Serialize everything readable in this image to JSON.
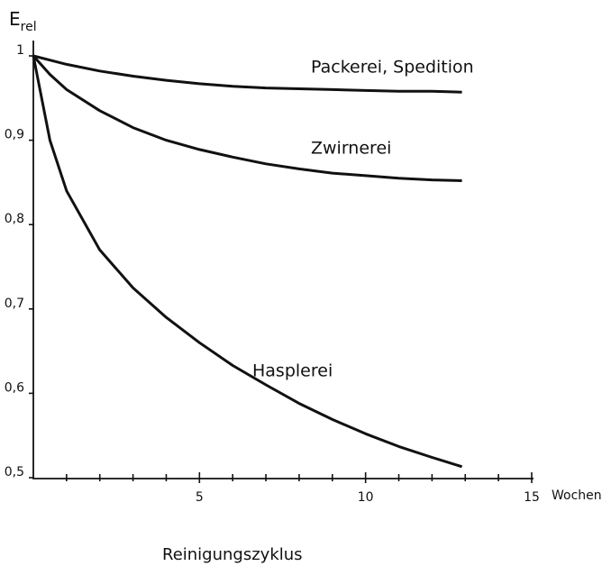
{
  "chart_data": {
    "type": "line",
    "y_label": {
      "main": "E",
      "sub": "rel"
    },
    "x_label": "Reinigungszyklus",
    "x_unit": "Wochen",
    "x": [
      0,
      0.5,
      1,
      2,
      3,
      4,
      5,
      6,
      7,
      8,
      9,
      10,
      11,
      12,
      12.9
    ],
    "series": [
      {
        "name": "Packerei, Spedition",
        "color": "#111111",
        "values": [
          1,
          0.995,
          0.99,
          0.982,
          0.976,
          0.971,
          0.967,
          0.964,
          0.962,
          0.961,
          0.96,
          0.959,
          0.958,
          0.958,
          0.957
        ]
      },
      {
        "name": "Zwirnerei",
        "color": "#111111",
        "values": [
          1,
          0.978,
          0.96,
          0.935,
          0.915,
          0.9,
          0.889,
          0.88,
          0.872,
          0.866,
          0.861,
          0.858,
          0.855,
          0.853,
          0.852
        ]
      },
      {
        "name": "Hasplerei",
        "color": "#111111",
        "values": [
          1,
          0.9,
          0.84,
          0.77,
          0.725,
          0.69,
          0.66,
          0.633,
          0.61,
          0.588,
          0.569,
          0.552,
          0.537,
          0.524,
          0.513
        ]
      }
    ],
    "xlim": [
      0,
      15
    ],
    "xticks": [
      5,
      10,
      15
    ],
    "xminor_ticks": [
      1,
      2,
      3,
      4,
      6,
      7,
      8,
      9,
      11,
      12,
      13,
      14
    ],
    "ylim": [
      0.5,
      1
    ],
    "yticks": [
      {
        "value": 0.5,
        "label": "0,5"
      },
      {
        "value": 0.6,
        "label": "0,6"
      },
      {
        "value": 0.7,
        "label": "0,7"
      },
      {
        "value": 0.8,
        "label": "0,8"
      },
      {
        "value": 0.9,
        "label": "0,9"
      },
      1
    ]
  }
}
